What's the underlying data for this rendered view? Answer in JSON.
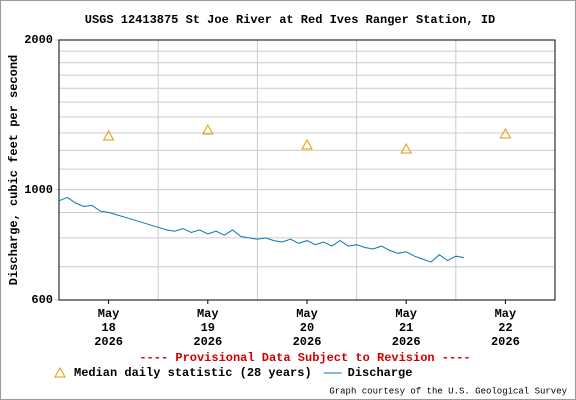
{
  "chart_data": {
    "type": "line",
    "title": "USGS 12413875 St Joe River at Red Ives Ranger Station, ID",
    "y_label": "Discharge, cubic feet per second",
    "annotation": "---- Provisional Data Subject to Revision ----",
    "credit": "Graph courtesy of the U.S. Geological Survey",
    "log_scale": true,
    "grid": true,
    "ylim": [
      600,
      2000
    ],
    "yticks": [
      600,
      1000,
      2000
    ],
    "minor_yticks": [
      700,
      800,
      900,
      1100,
      1200,
      1300,
      1400,
      1500,
      1600,
      1700,
      1800,
      1900
    ],
    "xlim": [
      "2026-05-18T00",
      "2026-05-23T00"
    ],
    "xgrid": [
      "2026-05-19T00",
      "2026-05-20T00",
      "2026-05-21T00",
      "2026-05-22T00"
    ],
    "xticks": [
      {
        "value": "2026-05-18T12",
        "label": [
          "May",
          "18",
          "2026"
        ]
      },
      {
        "value": "2026-05-19T12",
        "label": [
          "May",
          "19",
          "2026"
        ]
      },
      {
        "value": "2026-05-20T12",
        "label": [
          "May",
          "20",
          "2026"
        ]
      },
      {
        "value": "2026-05-21T12",
        "label": [
          "May",
          "21",
          "2026"
        ]
      },
      {
        "value": "2026-05-22T12",
        "label": [
          "May",
          "22",
          "2026"
        ]
      }
    ],
    "series": [
      {
        "name": "Median daily statistic (28 years)",
        "color": "#e69a00",
        "marker": "triangle",
        "x": [
          "2026-05-18T12",
          "2026-05-19T12",
          "2026-05-20T12",
          "2026-05-21T12",
          "2026-05-22T12"
        ],
        "values": [
          1282,
          1318,
          1230,
          1207,
          1294
        ]
      },
      {
        "name": "Discharge",
        "color": "#0a78b0",
        "marker": null,
        "x": [
          "2026-05-18T00",
          "2026-05-18T02",
          "2026-05-18T04",
          "2026-05-18T06",
          "2026-05-18T08",
          "2026-05-18T10",
          "2026-05-18T12",
          "2026-05-18T14",
          "2026-05-18T16",
          "2026-05-18T18",
          "2026-05-18T20",
          "2026-05-18T22",
          "2026-05-19T00",
          "2026-05-19T02",
          "2026-05-19T04",
          "2026-05-19T06",
          "2026-05-19T08",
          "2026-05-19T10",
          "2026-05-19T12",
          "2026-05-19T14",
          "2026-05-19T16",
          "2026-05-19T18",
          "2026-05-19T20",
          "2026-05-19T22",
          "2026-05-20T00",
          "2026-05-20T02",
          "2026-05-20T04",
          "2026-05-20T06",
          "2026-05-20T08",
          "2026-05-20T10",
          "2026-05-20T12",
          "2026-05-20T14",
          "2026-05-20T16",
          "2026-05-20T18",
          "2026-05-20T20",
          "2026-05-20T22",
          "2026-05-21T00",
          "2026-05-21T02",
          "2026-05-21T04",
          "2026-05-21T06",
          "2026-05-21T08",
          "2026-05-21T10",
          "2026-05-21T12",
          "2026-05-21T14",
          "2026-05-21T16",
          "2026-05-21T18",
          "2026-05-21T20",
          "2026-05-21T22",
          "2026-05-22T00",
          "2026-05-22T02"
        ],
        "values": [
          950,
          965,
          940,
          925,
          930,
          905,
          900,
          890,
          880,
          870,
          860,
          850,
          840,
          830,
          825,
          835,
          820,
          830,
          815,
          825,
          810,
          830,
          805,
          800,
          795,
          800,
          790,
          785,
          795,
          780,
          790,
          775,
          785,
          770,
          790,
          770,
          775,
          765,
          760,
          770,
          755,
          745,
          750,
          735,
          725,
          715,
          740,
          720,
          735,
          730
        ]
      }
    ]
  }
}
